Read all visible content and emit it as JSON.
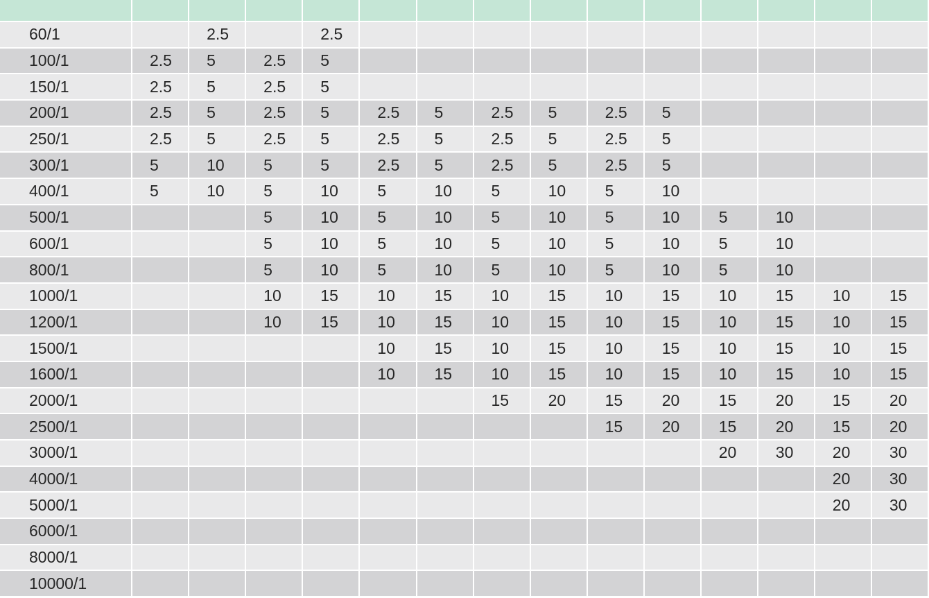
{
  "colors": {
    "header": "#c5e6d6",
    "row_light": "#e9e9ea",
    "row_dark": "#d3d3d5",
    "text": "#262626"
  },
  "table": {
    "header": [
      "",
      "",
      "",
      "",
      "",
      "",
      "",
      "",
      "",
      "",
      "",
      "",
      "",
      "",
      ""
    ],
    "rows": [
      {
        "label": "60/1",
        "values": [
          "",
          "2.5",
          "",
          "2.5",
          "",
          "",
          "",
          "",
          "",
          "",
          "",
          "",
          "",
          ""
        ]
      },
      {
        "label": "100/1",
        "values": [
          "2.5",
          "5",
          "2.5",
          "5",
          "",
          "",
          "",
          "",
          "",
          "",
          "",
          "",
          "",
          ""
        ]
      },
      {
        "label": "150/1",
        "values": [
          "2.5",
          "5",
          "2.5",
          "5",
          "",
          "",
          "",
          "",
          "",
          "",
          "",
          "",
          "",
          ""
        ]
      },
      {
        "label": "200/1",
        "values": [
          "2.5",
          "5",
          "2.5",
          "5",
          "2.5",
          "5",
          "2.5",
          "5",
          "2.5",
          "5",
          "",
          "",
          "",
          ""
        ]
      },
      {
        "label": "250/1",
        "values": [
          "2.5",
          "5",
          "2.5",
          "5",
          "2.5",
          "5",
          "2.5",
          "5",
          "2.5",
          "5",
          "",
          "",
          "",
          ""
        ]
      },
      {
        "label": "300/1",
        "values": [
          "5",
          "10",
          "5",
          "5",
          "2.5",
          "5",
          "2.5",
          "5",
          "2.5",
          "5",
          "",
          "",
          "",
          ""
        ]
      },
      {
        "label": "400/1",
        "values": [
          "5",
          "10",
          "5",
          "10",
          "5",
          "10",
          "5",
          "10",
          "5",
          "10",
          "",
          "",
          "",
          ""
        ]
      },
      {
        "label": "500/1",
        "values": [
          "",
          "",
          "5",
          "10",
          "5",
          "10",
          "5",
          "10",
          "5",
          "10",
          "5",
          "10",
          "",
          ""
        ]
      },
      {
        "label": "600/1",
        "values": [
          "",
          "",
          "5",
          "10",
          "5",
          "10",
          "5",
          "10",
          "5",
          "10",
          "5",
          "10",
          "",
          ""
        ]
      },
      {
        "label": "800/1",
        "values": [
          "",
          "",
          "5",
          "10",
          "5",
          "10",
          "5",
          "10",
          "5",
          "10",
          "5",
          "10",
          "",
          ""
        ]
      },
      {
        "label": "1000/1",
        "values": [
          "",
          "",
          "10",
          "15",
          "10",
          "15",
          "10",
          "15",
          "10",
          "15",
          "10",
          "15",
          "10",
          "15"
        ]
      },
      {
        "label": "1200/1",
        "values": [
          "",
          "",
          "10",
          "15",
          "10",
          "15",
          "10",
          "15",
          "10",
          "15",
          "10",
          "15",
          "10",
          "15"
        ]
      },
      {
        "label": "1500/1",
        "values": [
          "",
          "",
          "",
          "",
          "10",
          "15",
          "10",
          "15",
          "10",
          "15",
          "10",
          "15",
          "10",
          "15"
        ]
      },
      {
        "label": "1600/1",
        "values": [
          "",
          "",
          "",
          "",
          "10",
          "15",
          "10",
          "15",
          "10",
          "15",
          "10",
          "15",
          "10",
          "15"
        ]
      },
      {
        "label": "2000/1",
        "values": [
          "",
          "",
          "",
          "",
          "",
          "",
          "15",
          "20",
          "15",
          "20",
          "15",
          "20",
          "15",
          "20"
        ]
      },
      {
        "label": "2500/1",
        "values": [
          "",
          "",
          "",
          "",
          "",
          "",
          "",
          "",
          "15",
          "20",
          "15",
          "20",
          "15",
          "20"
        ]
      },
      {
        "label": "3000/1",
        "values": [
          "",
          "",
          "",
          "",
          "",
          "",
          "",
          "",
          "",
          "",
          "20",
          "30",
          "20",
          "30"
        ]
      },
      {
        "label": "4000/1",
        "values": [
          "",
          "",
          "",
          "",
          "",
          "",
          "",
          "",
          "",
          "",
          "",
          "",
          "20",
          "30"
        ]
      },
      {
        "label": "5000/1",
        "values": [
          "",
          "",
          "",
          "",
          "",
          "",
          "",
          "",
          "",
          "",
          "",
          "",
          "20",
          "30"
        ]
      },
      {
        "label": "6000/1",
        "values": [
          "",
          "",
          "",
          "",
          "",
          "",
          "",
          "",
          "",
          "",
          "",
          "",
          "",
          ""
        ]
      },
      {
        "label": "8000/1",
        "values": [
          "",
          "",
          "",
          "",
          "",
          "",
          "",
          "",
          "",
          "",
          "",
          "",
          "",
          ""
        ]
      },
      {
        "label": "10000/1",
        "values": [
          "",
          "",
          "",
          "",
          "",
          "",
          "",
          "",
          "",
          "",
          "",
          "",
          "",
          ""
        ]
      }
    ]
  }
}
